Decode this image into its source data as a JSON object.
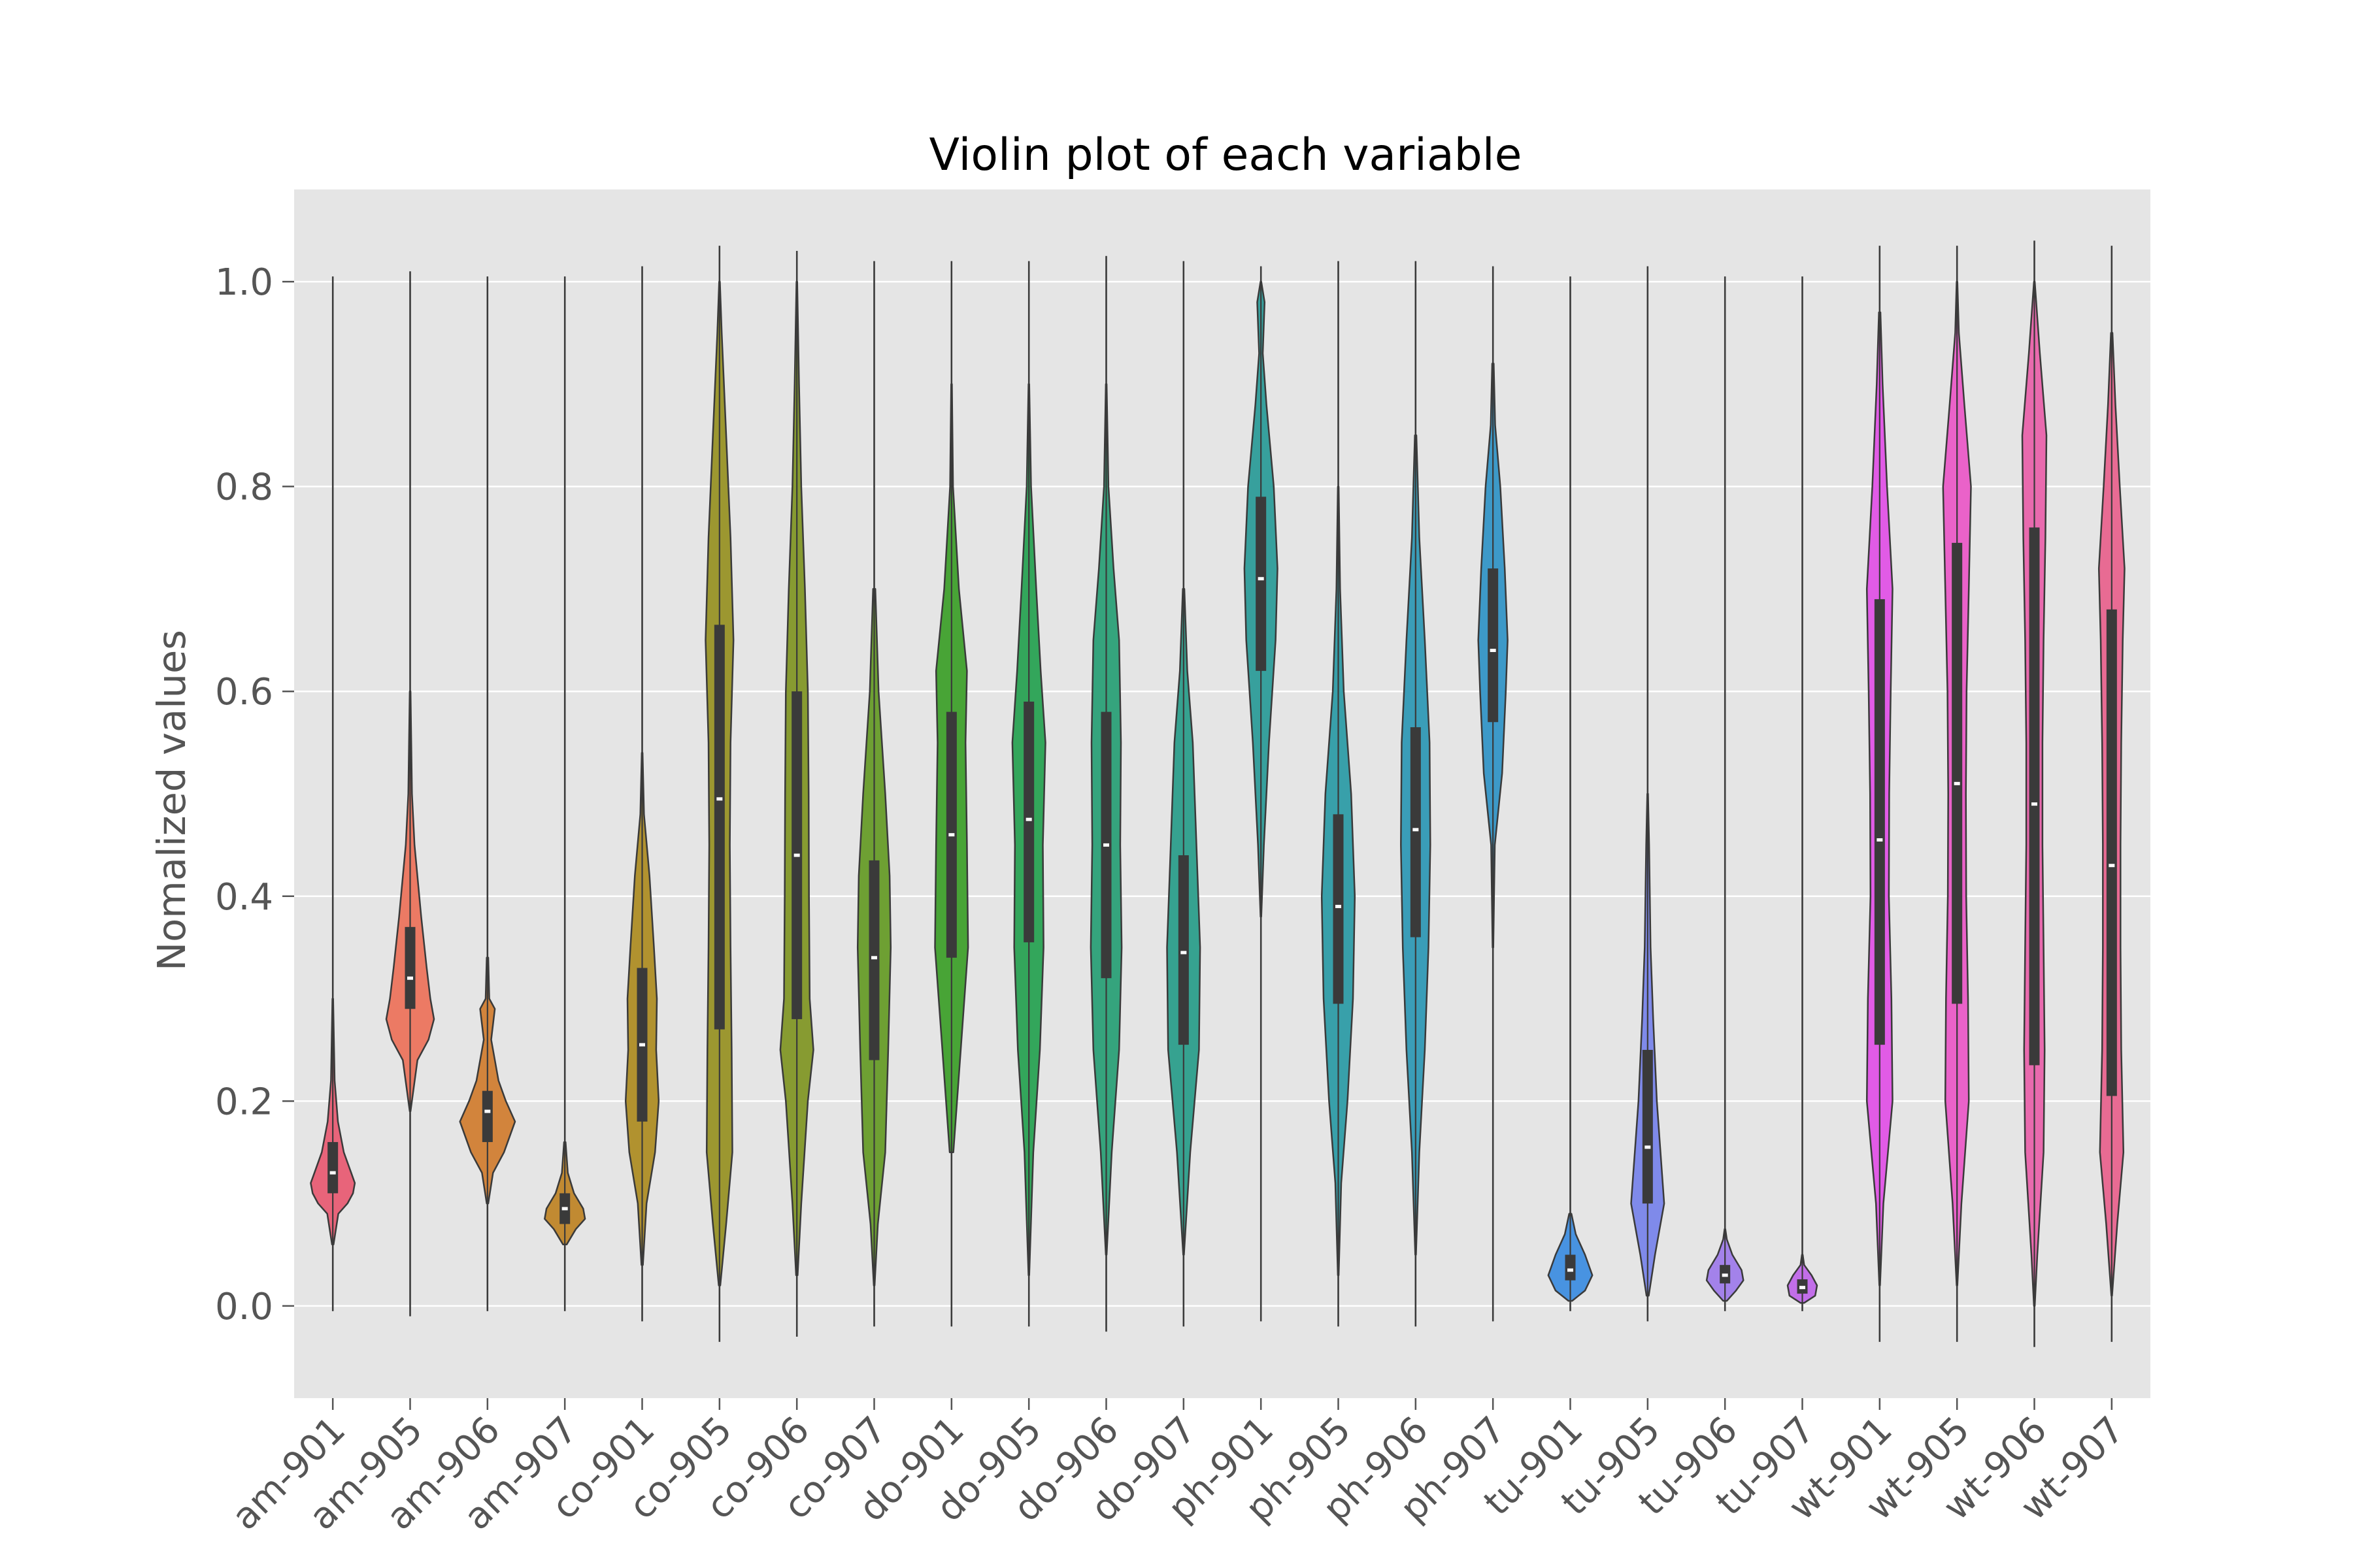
{
  "chart_data": {
    "type": "violin",
    "title": "Violin plot of each variable",
    "xlabel": "",
    "ylabel": "Nomalized values",
    "ylim": [
      -0.09,
      1.09
    ],
    "yticks": [
      "0.0",
      "0.2",
      "0.4",
      "0.6",
      "0.8",
      "1.0"
    ],
    "grid": true,
    "background_color": "#e5e5e5",
    "categories": [
      "am-901",
      "am-905",
      "am-906",
      "am-907",
      "co-901",
      "co-905",
      "co-906",
      "co-907",
      "do-901",
      "do-905",
      "do-906",
      "do-907",
      "ph-901",
      "ph-905",
      "ph-906",
      "ph-907",
      "tu-901",
      "tu-905",
      "tu-906",
      "tu-907",
      "wt-901",
      "wt-905",
      "wt-906",
      "wt-907"
    ],
    "colors": [
      "#e8647a",
      "#ec7a64",
      "#d2843c",
      "#c18a32",
      "#b1922f",
      "#9c9730",
      "#879b31",
      "#6ea033",
      "#48a436",
      "#33a65b",
      "#35a47d",
      "#36a290",
      "#37a09d",
      "#38a0aa",
      "#3a9db8",
      "#3d99c8",
      "#4893e1",
      "#7f8aea",
      "#a382ea",
      "#c26ee9",
      "#e15be6",
      "#ea62c9",
      "#e96aae",
      "#e86b93"
    ],
    "series": [
      {
        "name": "am-901",
        "min": -0.005,
        "max": 1.005,
        "q1": 0.11,
        "median": 0.13,
        "q3": 0.16,
        "profile": [
          [
            0.06,
            0.02
          ],
          [
            0.09,
            0.15
          ],
          [
            0.1,
            0.4
          ],
          [
            0.11,
            0.55
          ],
          [
            0.12,
            0.6
          ],
          [
            0.13,
            0.5
          ],
          [
            0.15,
            0.3
          ],
          [
            0.18,
            0.14
          ],
          [
            0.22,
            0.05
          ],
          [
            0.3,
            0.01
          ]
        ]
      },
      {
        "name": "am-905",
        "min": -0.01,
        "max": 1.01,
        "q1": 0.29,
        "median": 0.32,
        "q3": 0.37,
        "profile": [
          [
            0.19,
            0.01
          ],
          [
            0.24,
            0.2
          ],
          [
            0.26,
            0.5
          ],
          [
            0.28,
            0.65
          ],
          [
            0.3,
            0.55
          ],
          [
            0.33,
            0.45
          ],
          [
            0.38,
            0.3
          ],
          [
            0.45,
            0.12
          ],
          [
            0.5,
            0.05
          ],
          [
            0.6,
            0.01
          ]
        ]
      },
      {
        "name": "am-906",
        "min": -0.005,
        "max": 1.005,
        "q1": 0.16,
        "median": 0.19,
        "q3": 0.21,
        "profile": [
          [
            0.1,
            0.02
          ],
          [
            0.13,
            0.15
          ],
          [
            0.15,
            0.45
          ],
          [
            0.18,
            0.75
          ],
          [
            0.2,
            0.5
          ],
          [
            0.22,
            0.3
          ],
          [
            0.26,
            0.1
          ],
          [
            0.29,
            0.2
          ],
          [
            0.3,
            0.05
          ],
          [
            0.34,
            0.02
          ]
        ]
      },
      {
        "name": "am-907",
        "min": -0.005,
        "max": 1.005,
        "q1": 0.08,
        "median": 0.095,
        "q3": 0.11,
        "profile": [
          [
            0.06,
            0.05
          ],
          [
            0.075,
            0.3
          ],
          [
            0.085,
            0.55
          ],
          [
            0.095,
            0.5
          ],
          [
            0.11,
            0.25
          ],
          [
            0.13,
            0.08
          ],
          [
            0.16,
            0.02
          ]
        ]
      },
      {
        "name": "co-901",
        "min": -0.015,
        "max": 1.015,
        "q1": 0.18,
        "median": 0.255,
        "q3": 0.33,
        "profile": [
          [
            0.04,
            0.02
          ],
          [
            0.1,
            0.12
          ],
          [
            0.15,
            0.35
          ],
          [
            0.2,
            0.45
          ],
          [
            0.25,
            0.38
          ],
          [
            0.3,
            0.4
          ],
          [
            0.35,
            0.32
          ],
          [
            0.42,
            0.2
          ],
          [
            0.48,
            0.05
          ],
          [
            0.54,
            0.01
          ]
        ]
      },
      {
        "name": "co-905",
        "min": -0.035,
        "max": 1.035,
        "q1": 0.27,
        "median": 0.495,
        "q3": 0.665,
        "profile": [
          [
            0.02,
            0.02
          ],
          [
            0.08,
            0.18
          ],
          [
            0.15,
            0.35
          ],
          [
            0.25,
            0.33
          ],
          [
            0.35,
            0.3
          ],
          [
            0.45,
            0.28
          ],
          [
            0.55,
            0.3
          ],
          [
            0.65,
            0.38
          ],
          [
            0.75,
            0.3
          ],
          [
            0.85,
            0.18
          ],
          [
            0.95,
            0.06
          ],
          [
            1.0,
            0.01
          ]
        ]
      },
      {
        "name": "co-906",
        "min": -0.03,
        "max": 1.03,
        "q1": 0.28,
        "median": 0.44,
        "q3": 0.6,
        "profile": [
          [
            0.03,
            0.02
          ],
          [
            0.1,
            0.12
          ],
          [
            0.2,
            0.3
          ],
          [
            0.25,
            0.45
          ],
          [
            0.3,
            0.35
          ],
          [
            0.4,
            0.33
          ],
          [
            0.5,
            0.32
          ],
          [
            0.6,
            0.3
          ],
          [
            0.7,
            0.22
          ],
          [
            0.8,
            0.12
          ],
          [
            0.9,
            0.06
          ],
          [
            1.0,
            0.01
          ]
        ]
      },
      {
        "name": "co-907",
        "min": -0.02,
        "max": 1.02,
        "q1": 0.24,
        "median": 0.34,
        "q3": 0.435,
        "profile": [
          [
            0.02,
            0.01
          ],
          [
            0.08,
            0.1
          ],
          [
            0.15,
            0.3
          ],
          [
            0.25,
            0.38
          ],
          [
            0.35,
            0.45
          ],
          [
            0.42,
            0.42
          ],
          [
            0.5,
            0.3
          ],
          [
            0.6,
            0.12
          ],
          [
            0.7,
            0.03
          ]
        ]
      },
      {
        "name": "do-901",
        "min": -0.02,
        "max": 1.02,
        "q1": 0.34,
        "median": 0.46,
        "q3": 0.58,
        "profile": [
          [
            0.15,
            0.05
          ],
          [
            0.25,
            0.25
          ],
          [
            0.35,
            0.45
          ],
          [
            0.45,
            0.42
          ],
          [
            0.55,
            0.38
          ],
          [
            0.62,
            0.42
          ],
          [
            0.7,
            0.2
          ],
          [
            0.8,
            0.04
          ],
          [
            0.9,
            0.01
          ]
        ]
      },
      {
        "name": "do-905",
        "min": -0.02,
        "max": 1.02,
        "q1": 0.355,
        "median": 0.475,
        "q3": 0.59,
        "profile": [
          [
            0.03,
            0.01
          ],
          [
            0.15,
            0.12
          ],
          [
            0.25,
            0.3
          ],
          [
            0.35,
            0.4
          ],
          [
            0.45,
            0.38
          ],
          [
            0.55,
            0.45
          ],
          [
            0.62,
            0.32
          ],
          [
            0.7,
            0.2
          ],
          [
            0.8,
            0.06
          ],
          [
            0.9,
            0.01
          ]
        ]
      },
      {
        "name": "do-906",
        "min": -0.025,
        "max": 1.025,
        "q1": 0.32,
        "median": 0.45,
        "q3": 0.58,
        "profile": [
          [
            0.05,
            0.01
          ],
          [
            0.15,
            0.15
          ],
          [
            0.25,
            0.35
          ],
          [
            0.35,
            0.42
          ],
          [
            0.45,
            0.38
          ],
          [
            0.55,
            0.4
          ],
          [
            0.65,
            0.35
          ],
          [
            0.72,
            0.2
          ],
          [
            0.8,
            0.06
          ],
          [
            0.9,
            0.01
          ]
        ]
      },
      {
        "name": "do-907",
        "min": -0.02,
        "max": 1.02,
        "q1": 0.255,
        "median": 0.345,
        "q3": 0.44,
        "profile": [
          [
            0.05,
            0.01
          ],
          [
            0.15,
            0.18
          ],
          [
            0.25,
            0.42
          ],
          [
            0.35,
            0.45
          ],
          [
            0.45,
            0.35
          ],
          [
            0.55,
            0.25
          ],
          [
            0.62,
            0.1
          ],
          [
            0.7,
            0.02
          ]
        ]
      },
      {
        "name": "ph-901",
        "min": -0.015,
        "max": 1.015,
        "q1": 0.62,
        "median": 0.71,
        "q3": 0.79,
        "profile": [
          [
            0.38,
            0.01
          ],
          [
            0.45,
            0.08
          ],
          [
            0.55,
            0.22
          ],
          [
            0.65,
            0.4
          ],
          [
            0.72,
            0.45
          ],
          [
            0.8,
            0.35
          ],
          [
            0.88,
            0.15
          ],
          [
            0.93,
            0.05
          ],
          [
            0.98,
            0.1
          ],
          [
            1.0,
            0.01
          ]
        ]
      },
      {
        "name": "ph-905",
        "min": -0.02,
        "max": 1.02,
        "q1": 0.295,
        "median": 0.39,
        "q3": 0.48,
        "profile": [
          [
            0.03,
            0.01
          ],
          [
            0.12,
            0.08
          ],
          [
            0.2,
            0.25
          ],
          [
            0.3,
            0.4
          ],
          [
            0.4,
            0.45
          ],
          [
            0.5,
            0.35
          ],
          [
            0.6,
            0.15
          ],
          [
            0.7,
            0.05
          ],
          [
            0.8,
            0.01
          ]
        ]
      },
      {
        "name": "ph-906",
        "min": -0.02,
        "max": 1.02,
        "q1": 0.36,
        "median": 0.465,
        "q3": 0.565,
        "profile": [
          [
            0.05,
            0.01
          ],
          [
            0.15,
            0.1
          ],
          [
            0.25,
            0.25
          ],
          [
            0.35,
            0.35
          ],
          [
            0.45,
            0.4
          ],
          [
            0.55,
            0.38
          ],
          [
            0.65,
            0.25
          ],
          [
            0.75,
            0.1
          ],
          [
            0.85,
            0.02
          ]
        ]
      },
      {
        "name": "ph-907",
        "min": -0.015,
        "max": 1.015,
        "q1": 0.57,
        "median": 0.64,
        "q3": 0.72,
        "profile": [
          [
            0.35,
            0.01
          ],
          [
            0.45,
            0.05
          ],
          [
            0.52,
            0.25
          ],
          [
            0.6,
            0.35
          ],
          [
            0.65,
            0.4
          ],
          [
            0.72,
            0.32
          ],
          [
            0.8,
            0.2
          ],
          [
            0.86,
            0.06
          ],
          [
            0.92,
            0.02
          ]
        ]
      },
      {
        "name": "tu-901",
        "min": -0.005,
        "max": 1.005,
        "q1": 0.025,
        "median": 0.035,
        "q3": 0.05,
        "profile": [
          [
            0.005,
            0.05
          ],
          [
            0.015,
            0.4
          ],
          [
            0.03,
            0.6
          ],
          [
            0.05,
            0.4
          ],
          [
            0.07,
            0.15
          ],
          [
            0.09,
            0.03
          ]
        ]
      },
      {
        "name": "tu-905",
        "min": -0.015,
        "max": 1.015,
        "q1": 0.1,
        "median": 0.155,
        "q3": 0.25,
        "profile": [
          [
            0.01,
            0.03
          ],
          [
            0.05,
            0.2
          ],
          [
            0.1,
            0.45
          ],
          [
            0.15,
            0.35
          ],
          [
            0.2,
            0.25
          ],
          [
            0.28,
            0.15
          ],
          [
            0.35,
            0.08
          ],
          [
            0.45,
            0.04
          ],
          [
            0.5,
            0.01
          ]
        ]
      },
      {
        "name": "tu-906",
        "min": -0.005,
        "max": 1.005,
        "q1": 0.022,
        "median": 0.03,
        "q3": 0.04,
        "profile": [
          [
            0.005,
            0.05
          ],
          [
            0.015,
            0.3
          ],
          [
            0.025,
            0.5
          ],
          [
            0.035,
            0.45
          ],
          [
            0.05,
            0.2
          ],
          [
            0.065,
            0.05
          ],
          [
            0.075,
            0.01
          ]
        ]
      },
      {
        "name": "tu-907",
        "min": -0.005,
        "max": 1.005,
        "q1": 0.012,
        "median": 0.018,
        "q3": 0.026,
        "profile": [
          [
            0.003,
            0.05
          ],
          [
            0.01,
            0.35
          ],
          [
            0.02,
            0.4
          ],
          [
            0.03,
            0.25
          ],
          [
            0.04,
            0.05
          ],
          [
            0.05,
            0.01
          ]
        ]
      },
      {
        "name": "wt-901",
        "min": -0.035,
        "max": 1.035,
        "q1": 0.255,
        "median": 0.455,
        "q3": 0.69,
        "profile": [
          [
            0.02,
            0.01
          ],
          [
            0.1,
            0.1
          ],
          [
            0.2,
            0.35
          ],
          [
            0.3,
            0.32
          ],
          [
            0.4,
            0.25
          ],
          [
            0.5,
            0.26
          ],
          [
            0.6,
            0.3
          ],
          [
            0.7,
            0.35
          ],
          [
            0.8,
            0.2
          ],
          [
            0.9,
            0.08
          ],
          [
            0.97,
            0.02
          ]
        ]
      },
      {
        "name": "wt-905",
        "min": -0.035,
        "max": 1.035,
        "q1": 0.295,
        "median": 0.51,
        "q3": 0.745,
        "profile": [
          [
            0.02,
            0.01
          ],
          [
            0.1,
            0.12
          ],
          [
            0.2,
            0.32
          ],
          [
            0.3,
            0.3
          ],
          [
            0.4,
            0.25
          ],
          [
            0.5,
            0.24
          ],
          [
            0.6,
            0.26
          ],
          [
            0.7,
            0.32
          ],
          [
            0.8,
            0.38
          ],
          [
            0.88,
            0.2
          ],
          [
            0.95,
            0.05
          ],
          [
            1.0,
            0.01
          ]
        ]
      },
      {
        "name": "wt-906",
        "min": -0.04,
        "max": 1.04,
        "q1": 0.235,
        "median": 0.49,
        "q3": 0.76,
        "profile": [
          [
            0.0,
            0.01
          ],
          [
            0.05,
            0.08
          ],
          [
            0.15,
            0.25
          ],
          [
            0.25,
            0.28
          ],
          [
            0.35,
            0.25
          ],
          [
            0.45,
            0.22
          ],
          [
            0.55,
            0.22
          ],
          [
            0.65,
            0.25
          ],
          [
            0.75,
            0.3
          ],
          [
            0.85,
            0.33
          ],
          [
            0.93,
            0.15
          ],
          [
            1.0,
            0.01
          ]
        ]
      },
      {
        "name": "wt-907",
        "min": -0.035,
        "max": 1.035,
        "q1": 0.205,
        "median": 0.43,
        "q3": 0.68,
        "profile": [
          [
            0.01,
            0.01
          ],
          [
            0.08,
            0.15
          ],
          [
            0.15,
            0.32
          ],
          [
            0.25,
            0.26
          ],
          [
            0.35,
            0.24
          ],
          [
            0.45,
            0.24
          ],
          [
            0.55,
            0.26
          ],
          [
            0.65,
            0.3
          ],
          [
            0.72,
            0.35
          ],
          [
            0.8,
            0.22
          ],
          [
            0.88,
            0.1
          ],
          [
            0.95,
            0.02
          ]
        ]
      }
    ]
  }
}
